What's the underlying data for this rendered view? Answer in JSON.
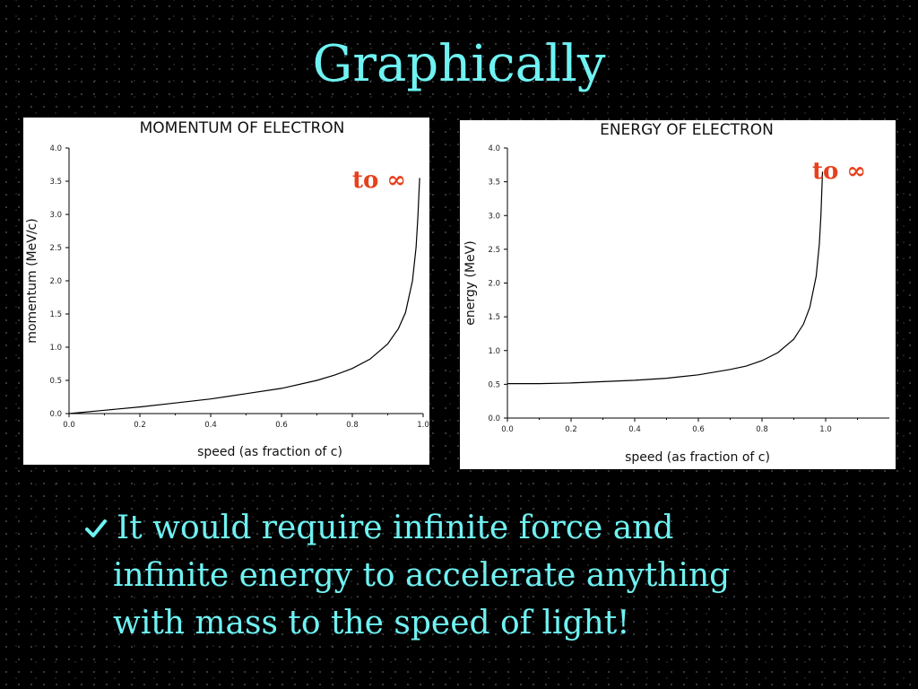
{
  "slide": {
    "title": "Graphically",
    "bullet_lines": [
      "It would require infinite force and",
      "infinite energy to accelerate anything",
      "with mass to the speed of light!"
    ],
    "bullet_icon": "checkmark-icon",
    "colors": {
      "title": "#6ff2f2",
      "background": "#000000",
      "annotation": "#e8401c",
      "curve": "#000000"
    }
  },
  "chart_data": [
    {
      "type": "line",
      "title": "MOMENTUM OF ELECTRON",
      "xlabel": "speed (as fraction of c)",
      "ylabel": "momentum (MeV/c)",
      "xlim": [
        0.0,
        1.0
      ],
      "ylim": [
        0.0,
        4.0
      ],
      "x_ticks": [
        "0.0",
        "0.2",
        "0.4",
        "0.6",
        "0.8",
        "1.0"
      ],
      "y_ticks": [
        "0.0",
        "0.5",
        "1.0",
        "1.5",
        "2.0",
        "2.5",
        "3.0",
        "3.5",
        "4.0"
      ],
      "grid": false,
      "annotation": "to ∞",
      "series": [
        {
          "x": [
            0,
            0.1,
            0.2,
            0.3,
            0.4,
            0.5,
            0.6,
            0.7,
            0.75,
            0.8,
            0.85,
            0.9,
            0.93,
            0.95,
            0.97,
            0.98,
            0.985,
            0.99
          ],
          "y": [
            0,
            0.05,
            0.1,
            0.16,
            0.22,
            0.3,
            0.38,
            0.5,
            0.58,
            0.68,
            0.82,
            1.05,
            1.28,
            1.52,
            2.0,
            2.5,
            2.95,
            3.55
          ]
        }
      ]
    },
    {
      "type": "line",
      "title": "ENERGY OF ELECTRON",
      "xlabel": "speed (as fraction of c)",
      "ylabel": "energy (MeV)",
      "xlim": [
        0.0,
        1.2
      ],
      "ylim": [
        0.0,
        4.0
      ],
      "x_ticks": [
        "0.0",
        "0.2",
        "0.4",
        "0.6",
        "0.8",
        "1.0"
      ],
      "y_ticks": [
        "0.0",
        "0.5",
        "1.0",
        "1.5",
        "2.0",
        "2.5",
        "3.0",
        "3.5",
        "4.0"
      ],
      "grid": false,
      "annotation": "to ∞",
      "series": [
        {
          "x": [
            0,
            0.1,
            0.2,
            0.3,
            0.4,
            0.5,
            0.6,
            0.7,
            0.75,
            0.8,
            0.85,
            0.9,
            0.93,
            0.95,
            0.97,
            0.98,
            0.985,
            0.99
          ],
          "y": [
            0.51,
            0.51,
            0.52,
            0.54,
            0.56,
            0.59,
            0.64,
            0.72,
            0.77,
            0.85,
            0.97,
            1.17,
            1.39,
            1.64,
            2.1,
            2.57,
            3.0,
            3.65
          ]
        }
      ]
    }
  ]
}
